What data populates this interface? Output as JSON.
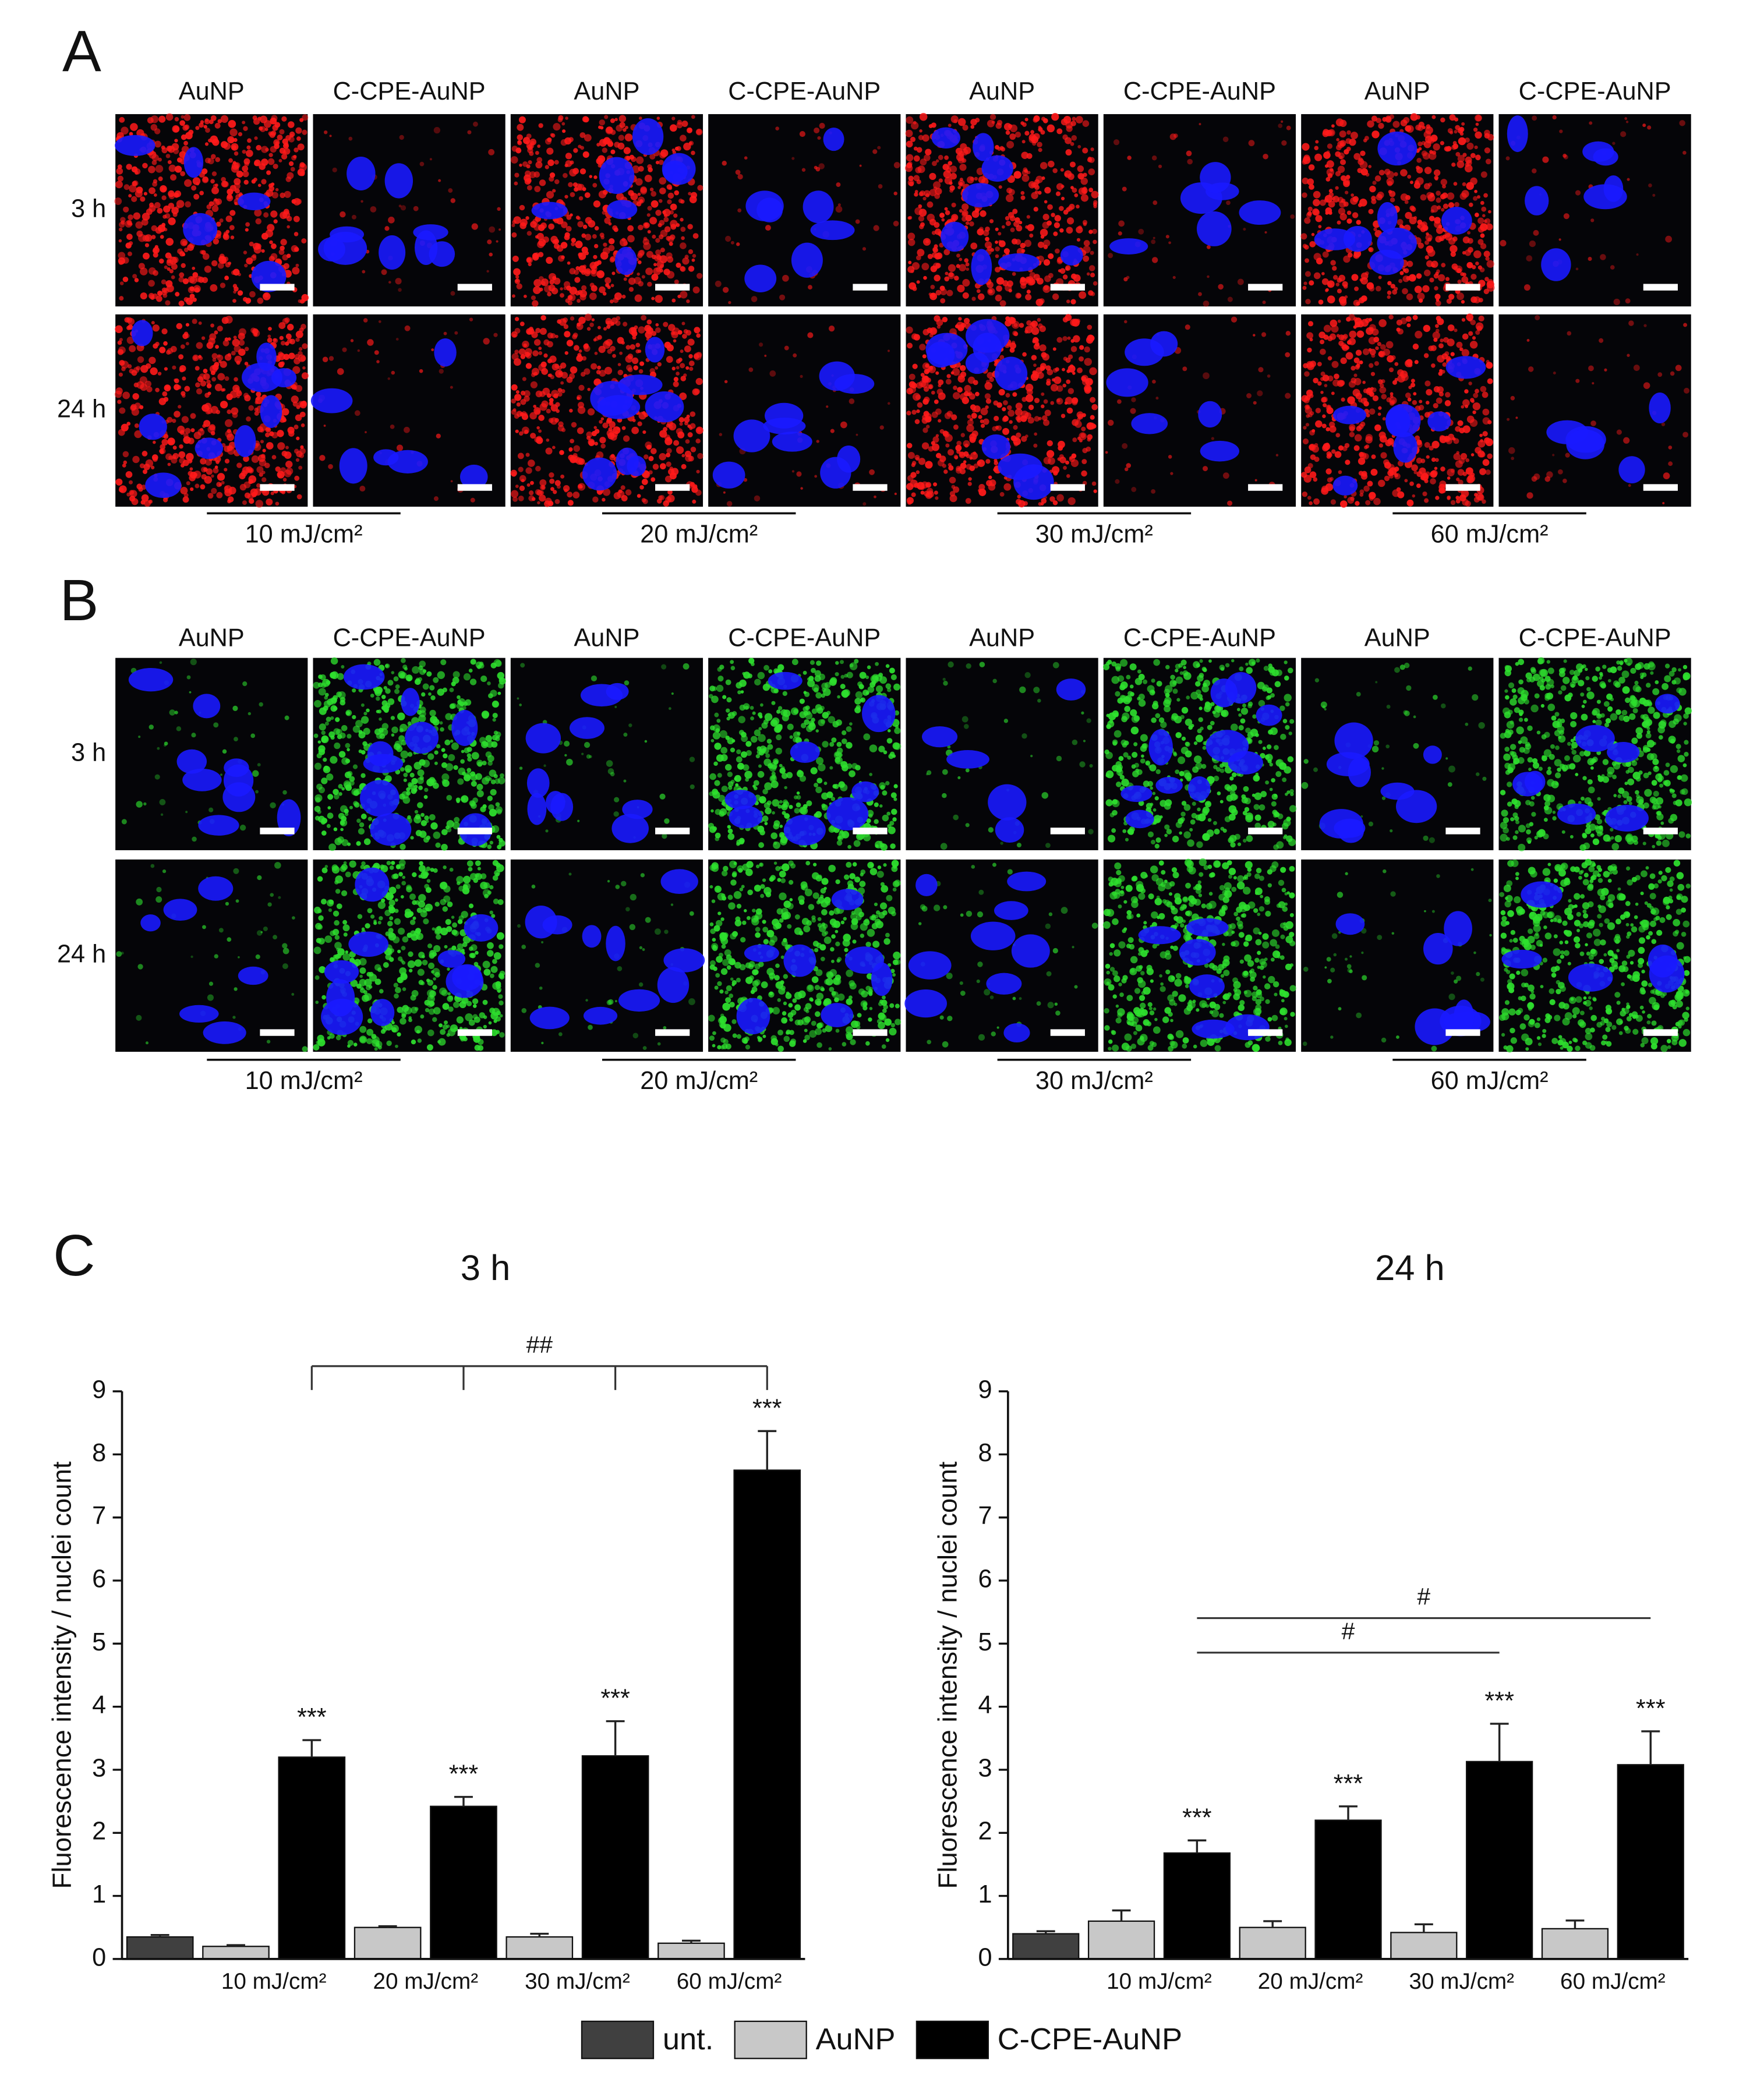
{
  "panels": [
    {
      "label": "A",
      "columns": [
        "AuNP",
        "C-CPE-AuNP",
        "AuNP",
        "C-CPE-AuNP",
        "AuNP",
        "C-CPE-AuNP",
        "AuNP",
        "C-CPE-AuNP"
      ],
      "rows": [
        "3 h",
        "24 h"
      ],
      "doses": [
        "10 mJ/cm²",
        "20 mJ/cm²",
        "30 mJ/cm²",
        "60 mJ/cm²"
      ],
      "stain_color": "#ff1a1a"
    },
    {
      "label": "B",
      "columns": [
        "AuNP",
        "C-CPE-AuNP",
        "AuNP",
        "C-CPE-AuNP",
        "AuNP",
        "C-CPE-AuNP",
        "AuNP",
        "C-CPE-AuNP"
      ],
      "rows": [
        "3 h",
        "24 h"
      ],
      "doses": [
        "10 mJ/cm²",
        "20 mJ/cm²",
        "30 mJ/cm²",
        "60 mJ/cm²"
      ],
      "stain_color": "#2ee02e"
    }
  ],
  "panel_c_label": "C",
  "legend": "bottom",
  "chart_data": [
    {
      "type": "bar",
      "title": "3 h",
      "y_label": "Fluorescence intensity / nuclei count",
      "categories": [
        null,
        "10 mJ/cm²",
        "20 mJ/cm²",
        "30 mJ/cm²",
        "60 mJ/cm²"
      ],
      "series": [
        {
          "name": "unt.",
          "color": "#404040",
          "values": [
            0.35,
            null,
            null,
            null,
            null
          ],
          "errors": [
            0.03,
            null,
            null,
            null,
            null
          ],
          "annotations": [
            null,
            null,
            null,
            null,
            null
          ]
        },
        {
          "name": "AuNP",
          "color": "#c8c8c8",
          "values": [
            null,
            0.2,
            0.5,
            0.35,
            0.25
          ],
          "errors": [
            null,
            0.02,
            0.02,
            0.05,
            0.04
          ],
          "annotations": [
            null,
            null,
            null,
            null,
            null
          ]
        },
        {
          "name": "C-CPE-AuNP",
          "color": "#000000",
          "values": [
            null,
            3.2,
            2.42,
            3.22,
            7.75
          ],
          "errors": [
            null,
            0.27,
            0.15,
            0.55,
            0.62
          ],
          "annotations": [
            null,
            "***",
            "***",
            "***",
            "***"
          ]
        }
      ],
      "ylim": [
        0,
        9
      ],
      "yticks": [
        0,
        1,
        2,
        3,
        4,
        5,
        6,
        7,
        8,
        9
      ],
      "comparisons": [
        {
          "label": "##",
          "style": "bracket",
          "categories": [
            "10 mJ/cm²",
            "20 mJ/cm²",
            "30 mJ/cm²",
            "60 mJ/cm²"
          ]
        }
      ]
    },
    {
      "type": "bar",
      "title": "24 h",
      "y_label": "Fluorescence intensity / nuclei count",
      "categories": [
        null,
        "10 mJ/cm²",
        "20 mJ/cm²",
        "30 mJ/cm²",
        "60 mJ/cm²"
      ],
      "series": [
        {
          "name": "unt.",
          "color": "#404040",
          "values": [
            0.4,
            null,
            null,
            null,
            null
          ],
          "errors": [
            0.04,
            null,
            null,
            null,
            null
          ],
          "annotations": [
            null,
            null,
            null,
            null,
            null
          ]
        },
        {
          "name": "AuNP",
          "color": "#c8c8c8",
          "values": [
            null,
            0.6,
            0.5,
            0.42,
            0.48
          ],
          "errors": [
            null,
            0.17,
            0.1,
            0.13,
            0.13
          ],
          "annotations": [
            null,
            null,
            null,
            null,
            null
          ]
        },
        {
          "name": "C-CPE-AuNP",
          "color": "#000000",
          "values": [
            null,
            1.68,
            2.2,
            3.13,
            3.08
          ],
          "errors": [
            null,
            0.2,
            0.22,
            0.6,
            0.53
          ],
          "annotations": [
            null,
            "***",
            "***",
            "***",
            "***"
          ]
        }
      ],
      "ylim": [
        0,
        9
      ],
      "yticks": [
        0,
        1,
        2,
        3,
        4,
        5,
        6,
        7,
        8,
        9
      ],
      "comparisons": [
        {
          "label": "#",
          "style": "line",
          "categories": [
            "10 mJ/cm²",
            "60 mJ/cm²"
          ]
        },
        {
          "label": "#",
          "style": "line",
          "categories": [
            "10 mJ/cm²",
            "30 mJ/cm²"
          ]
        }
      ]
    }
  ]
}
